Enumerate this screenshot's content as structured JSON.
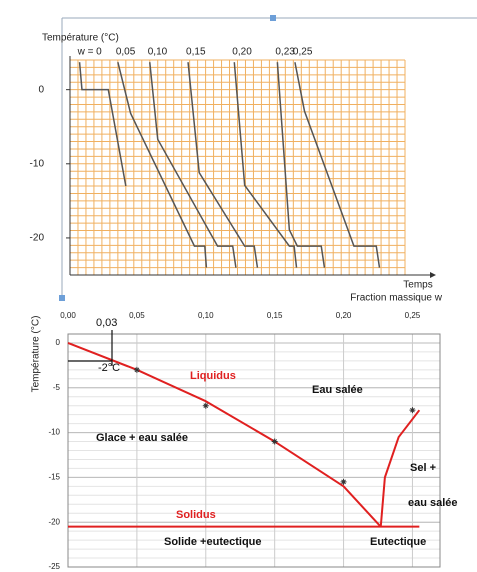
{
  "chart_data": [
    {
      "type": "line",
      "title": "Température (°C)",
      "xlabel": "Temps",
      "xlim": [
        0,
        42
      ],
      "ylim": [
        -25,
        4
      ],
      "yticks": [
        0,
        -10,
        -20
      ],
      "grid": true,
      "grid_color": "#f0b060",
      "series": [
        {
          "name": "w = 0",
          "color": "#555555",
          "x": [
            1.2,
            1.5,
            4.8,
            7
          ],
          "values": [
            3.7,
            0,
            0,
            -13
          ]
        },
        {
          "name": "0,05",
          "color": "#555555",
          "x": [
            6,
            7.6,
            15.6,
            16.9,
            17.1
          ],
          "values": [
            3.7,
            -3.2,
            -21.1,
            -21.1,
            -24
          ]
        },
        {
          "name": "0,10",
          "color": "#555555",
          "x": [
            10,
            11,
            18.5,
            20.4,
            20.8
          ],
          "values": [
            3.7,
            -6.7,
            -21.1,
            -21.1,
            -24
          ]
        },
        {
          "name": "0,15",
          "color": "#555555",
          "x": [
            14.8,
            16.2,
            21.9,
            23.1,
            23.5
          ],
          "values": [
            3.7,
            -11.2,
            -21.1,
            -21.1,
            -24
          ]
        },
        {
          "name": "0,20",
          "color": "#555555",
          "x": [
            20.6,
            21.9,
            27.5,
            28.1,
            28.4
          ],
          "values": [
            3.7,
            -12.9,
            -21.1,
            -21.1,
            -24
          ]
        },
        {
          "name": "0,23",
          "color": "#555555",
          "x": [
            26,
            27.5,
            28.5,
            31.5,
            31.9
          ],
          "values": [
            3.7,
            -18.9,
            -21.1,
            -21.1,
            -24
          ]
        },
        {
          "name": "0,25",
          "color": "#555555",
          "x": [
            28.2,
            29.4,
            35.6,
            38.4,
            38.8
          ],
          "values": [
            3.7,
            -2.9,
            -21.1,
            -21.1,
            -24
          ]
        }
      ]
    },
    {
      "type": "phase",
      "xlabel": "Fraction massique w",
      "ylabel": "Température (°C)",
      "xlim": [
        0,
        0.27
      ],
      "ylim": [
        -25,
        1
      ],
      "xticks": [
        {
          "value": 0,
          "label": "0,00"
        },
        {
          "value": 0.05,
          "label": "0,05"
        },
        {
          "value": 0.1,
          "label": "0,10"
        },
        {
          "value": 0.15,
          "label": "0,15"
        },
        {
          "value": 0.2,
          "label": "0,20"
        },
        {
          "value": 0.25,
          "label": "0,25"
        }
      ],
      "yticks": [
        0,
        -5,
        -10,
        -15,
        -20,
        -25
      ],
      "grid": true,
      "series": [
        {
          "color": "#e02020",
          "x": [
            0,
            0.05,
            0.1,
            0.15,
            0.2,
            0.227
          ],
          "values": [
            0,
            -3,
            -6.5,
            -11,
            -16,
            -20.5
          ]
        },
        {
          "color": "#e02020",
          "x": [
            0.227,
            0.23,
            0.24,
            0.255
          ],
          "values": [
            -20.5,
            -15,
            -10.5,
            -7.5
          ]
        },
        {
          "color": "#e02020",
          "x": [
            0,
            0.255
          ],
          "values": [
            -20.5,
            -20.5
          ]
        }
      ],
      "points": {
        "x": [
          0.05,
          0.1,
          0.15,
          0.2,
          0.25
        ],
        "values": [
          -3,
          -7,
          -11,
          -15.5,
          -7.5
        ]
      },
      "annotations": [
        "0,03",
        "-2°C",
        "Liquidus",
        "Eau salée",
        "Glace + eau salée",
        "Sel +",
        "eau salée",
        "Solidus",
        "Solide +eutectique",
        "Eutectique"
      ]
    }
  ]
}
